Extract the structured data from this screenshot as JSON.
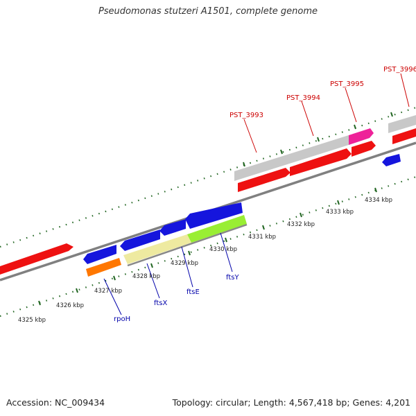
{
  "header": {
    "title": "Pseudomonas stutzeri A1501, complete genome"
  },
  "footer": {
    "accession": "Accession: NC_009434",
    "summary": "Topology: circular; Length: 4,567,418 bp; Genes: 4,201"
  },
  "scale": {
    "labels": [
      "4325 kbp",
      "4326 kbp",
      "4327 kbp",
      "4328 kbp",
      "4329 kbp",
      "4330 kbp",
      "4331 kbp",
      "4332 kbp",
      "4333 kbp",
      "4334 kbp"
    ]
  },
  "genes": {
    "rpoH": "rpoH",
    "ftsX": "ftsX",
    "ftsE": "ftsE",
    "ftsY": "ftsY",
    "PST_3993": "PST_3993",
    "PST_3994": "PST_3994",
    "PST_3995": "PST_3995",
    "PST_3996": "PST_3996"
  },
  "colors": {
    "red": "#ee1111",
    "blue": "#1515dd",
    "orange": "#ff7700",
    "pale_yellow": "#eeeaa0",
    "lime": "#99ee33",
    "grey": "#c8c8c8",
    "magenta": "#ee2299",
    "axis": "#808080",
    "tick": "#226622",
    "label_red": "#cc0000",
    "label_blue": "#0000aa"
  }
}
